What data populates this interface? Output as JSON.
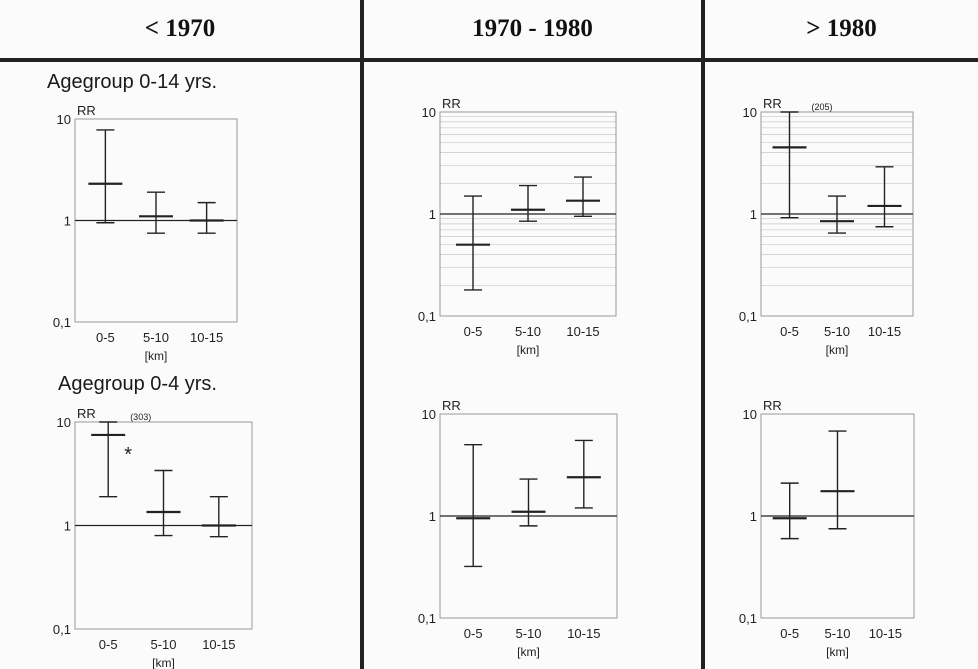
{
  "headers": [
    "< 1970",
    "1970 - 1980",
    "> 1980"
  ],
  "groups": [
    "Agegroup 0-14 yrs.",
    "Agegroup 0-4 yrs."
  ],
  "colors": {
    "ink": "#222222",
    "frame": "#9a9a9a",
    "grid": "#c8c8c8",
    "background": "#fbfbfb"
  },
  "chart_data": [
    {
      "type": "errorbar",
      "panel": "agegroup-0-14-before-1970",
      "ylabel": "RR",
      "xlabel": "[km]",
      "yscale": "log",
      "ylim": [
        0.1,
        10
      ],
      "yticks": [
        "0,1",
        "1",
        "10"
      ],
      "categories": [
        "0-5",
        "5-10",
        "10-15"
      ],
      "points": [
        {
          "x": "0-5",
          "rr": 2.3,
          "lo": 0.95,
          "hi": 7.8
        },
        {
          "x": "5-10",
          "rr": 1.1,
          "lo": 0.75,
          "hi": 1.9
        },
        {
          "x": "10-15",
          "rr": 1.0,
          "lo": 0.75,
          "hi": 1.5
        }
      ],
      "annotations": [],
      "grid": false
    },
    {
      "type": "errorbar",
      "panel": "agegroup-0-14-1970-1980",
      "ylabel": "RR",
      "xlabel": "[km]",
      "yscale": "log",
      "ylim": [
        0.1,
        10
      ],
      "yticks": [
        "0,1",
        "1",
        "10"
      ],
      "categories": [
        "0-5",
        "5-10",
        "10-15"
      ],
      "points": [
        {
          "x": "0-5",
          "rr": 0.5,
          "lo": 0.18,
          "hi": 1.5
        },
        {
          "x": "5-10",
          "rr": 1.1,
          "lo": 0.85,
          "hi": 1.9
        },
        {
          "x": "10-15",
          "rr": 1.35,
          "lo": 0.95,
          "hi": 2.3
        }
      ],
      "annotations": [],
      "grid": true
    },
    {
      "type": "errorbar",
      "panel": "agegroup-0-14-after-1980",
      "ylabel": "RR",
      "xlabel": "[km]",
      "yscale": "log",
      "ylim": [
        0.1,
        10
      ],
      "yticks": [
        "0,1",
        "1",
        "10"
      ],
      "categories": [
        "0-5",
        "5-10",
        "10-15"
      ],
      "points": [
        {
          "x": "0-5",
          "rr": 4.5,
          "hi_label": "(205)",
          "lo": 0.92,
          "hi": 10.0
        },
        {
          "x": "5-10",
          "rr": 0.85,
          "lo": 0.65,
          "hi": 1.5
        },
        {
          "x": "10-15",
          "rr": 1.2,
          "lo": 0.75,
          "hi": 2.9
        }
      ],
      "annotations": [
        "(205)"
      ],
      "grid": true
    },
    {
      "type": "errorbar",
      "panel": "agegroup-0-4-before-1970",
      "ylabel": "RR",
      "xlabel": "[km]",
      "yscale": "log",
      "ylim": [
        0.1,
        10
      ],
      "yticks": [
        "0,1",
        "1",
        "10"
      ],
      "categories": [
        "0-5",
        "5-10",
        "10-15"
      ],
      "points": [
        {
          "x": "0-5",
          "rr": 7.5,
          "hi_label": "(303)",
          "lo": 1.9,
          "hi": 10.0,
          "marker": "*"
        },
        {
          "x": "5-10",
          "rr": 1.35,
          "lo": 0.8,
          "hi": 3.4
        },
        {
          "x": "10-15",
          "rr": 1.0,
          "lo": 0.78,
          "hi": 1.9
        }
      ],
      "annotations": [
        "(303)",
        "*"
      ],
      "grid": false
    },
    {
      "type": "errorbar",
      "panel": "agegroup-0-4-1970-1980",
      "ylabel": "RR",
      "xlabel": "[km]",
      "yscale": "log",
      "ylim": [
        0.1,
        10
      ],
      "yticks": [
        "0,1",
        "1",
        "10"
      ],
      "categories": [
        "0-5",
        "5-10",
        "10-15"
      ],
      "points": [
        {
          "x": "0-5",
          "rr": 0.95,
          "lo": 0.32,
          "hi": 5.0
        },
        {
          "x": "5-10",
          "rr": 1.1,
          "lo": 0.8,
          "hi": 2.3
        },
        {
          "x": "10-15",
          "rr": 2.4,
          "lo": 1.2,
          "hi": 5.5
        }
      ],
      "annotations": [],
      "grid": false
    },
    {
      "type": "errorbar",
      "panel": "agegroup-0-4-after-1980",
      "ylabel": "RR",
      "xlabel": "[km]",
      "yscale": "log",
      "ylim": [
        0.1,
        10
      ],
      "yticks": [
        "0,1",
        "1",
        "10"
      ],
      "categories": [
        "0-5",
        "5-10",
        "10-15"
      ],
      "points": [
        {
          "x": "0-5",
          "rr": 0.95,
          "lo": 0.6,
          "hi": 2.1
        },
        {
          "x": "5-10",
          "rr": 1.75,
          "lo": 0.75,
          "hi": 6.8
        }
      ],
      "annotations": [],
      "grid": false
    }
  ]
}
